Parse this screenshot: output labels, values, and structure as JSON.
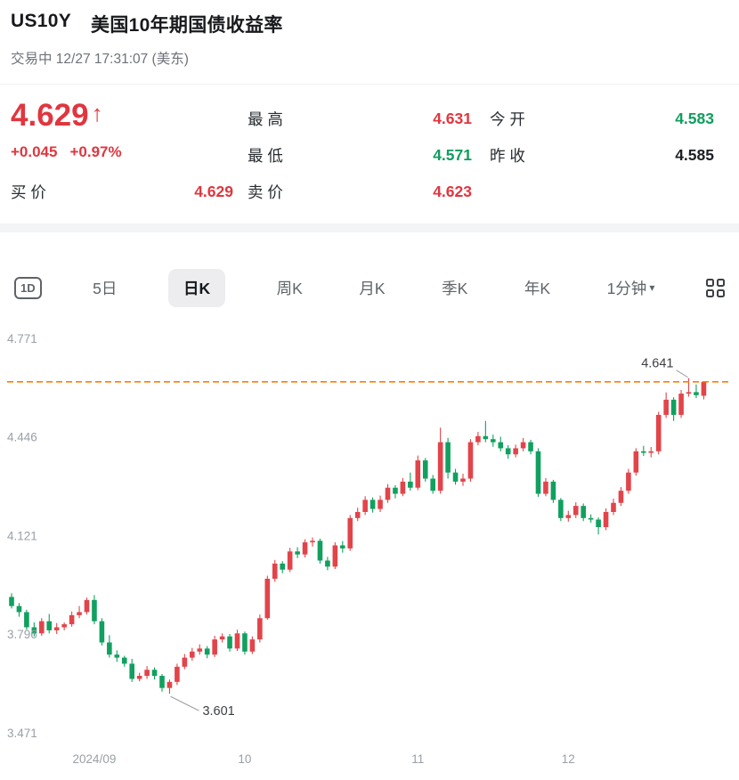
{
  "header": {
    "symbol": "US10Y",
    "name": "美国10年期国债收益率",
    "status_line": "交易中 12/27 17:31:07 (美东)"
  },
  "quote": {
    "price": "4.629",
    "arrow": "↑",
    "change": "+0.045",
    "change_pct": "+0.97%",
    "stats": [
      {
        "label": "最 高",
        "value": "4.631",
        "color": "red"
      },
      {
        "label": "今 开",
        "value": "4.583",
        "color": "green"
      },
      {
        "label": "最 低",
        "value": "4.571",
        "color": "green"
      },
      {
        "label": "昨 收",
        "value": "4.585",
        "color": "dark"
      },
      {
        "label": "买 价",
        "value": "4.629",
        "color": "red"
      },
      {
        "label": "卖 价",
        "value": "4.623",
        "color": "red"
      }
    ]
  },
  "tabs": {
    "items": [
      {
        "id": "tab-1d-intraday",
        "label": "1D",
        "type": "icon-box"
      },
      {
        "id": "tab-5-day",
        "label": "5日"
      },
      {
        "id": "tab-daily-k",
        "label": "日K",
        "active": true
      },
      {
        "id": "tab-weekly-k",
        "label": "周K"
      },
      {
        "id": "tab-monthly-k",
        "label": "月K"
      },
      {
        "id": "tab-quarterly-k",
        "label": "季K"
      },
      {
        "id": "tab-yearly-k",
        "label": "年K"
      },
      {
        "id": "tab-1-minute-selector",
        "label": "1分钟",
        "caret": "▾"
      }
    ]
  },
  "colors": {
    "red": "#e0363f",
    "green": "#0f9e5d",
    "dark": "#1c2024",
    "orange": "#ff7d00",
    "axis": "#9aa0a6",
    "annotation": "#3c4043"
  },
  "chart_data": {
    "type": "candlestick",
    "symbol": "US10Y",
    "up_color": "#e2444a",
    "down_color": "#11a05f",
    "y_ticks": [
      4.771,
      4.446,
      4.121,
      3.796,
      3.471
    ],
    "y_domain": [
      3.44,
      4.825
    ],
    "x_ticks": [
      {
        "label": "2024/09",
        "index": 11
      },
      {
        "label": "10",
        "index": 31
      },
      {
        "label": "11",
        "index": 54
      },
      {
        "label": "12",
        "index": 74
      }
    ],
    "current_price_line": 4.629,
    "annotations": [
      {
        "text": "3.601",
        "index": 21,
        "value": 3.601,
        "side": "below-right"
      },
      {
        "text": "4.641",
        "index": 90,
        "value": 4.641,
        "side": "left"
      }
    ],
    "candles": [
      [
        3.92,
        3.932,
        3.882,
        3.89
      ],
      [
        3.89,
        3.9,
        3.855,
        3.87
      ],
      [
        3.87,
        3.878,
        3.812,
        3.82
      ],
      [
        3.82,
        3.836,
        3.79,
        3.8
      ],
      [
        3.8,
        3.85,
        3.792,
        3.84
      ],
      [
        3.84,
        3.864,
        3.8,
        3.81
      ],
      [
        3.81,
        3.834,
        3.798,
        3.82
      ],
      [
        3.82,
        3.836,
        3.81,
        3.83
      ],
      [
        3.83,
        3.872,
        3.822,
        3.86
      ],
      [
        3.86,
        3.89,
        3.85,
        3.87
      ],
      [
        3.87,
        3.918,
        3.862,
        3.91
      ],
      [
        3.91,
        3.926,
        3.83,
        3.84
      ],
      [
        3.84,
        3.85,
        3.76,
        3.77
      ],
      [
        3.77,
        3.794,
        3.72,
        3.73
      ],
      [
        3.73,
        3.744,
        3.706,
        3.72
      ],
      [
        3.72,
        3.726,
        3.69,
        3.7
      ],
      [
        3.7,
        3.716,
        3.64,
        3.65
      ],
      [
        3.65,
        3.67,
        3.642,
        3.66
      ],
      [
        3.66,
        3.692,
        3.65,
        3.68
      ],
      [
        3.68,
        3.688,
        3.648,
        3.66
      ],
      [
        3.66,
        3.666,
        3.608,
        3.62
      ],
      [
        3.62,
        3.648,
        3.601,
        3.64
      ],
      [
        3.64,
        3.7,
        3.63,
        3.69
      ],
      [
        3.69,
        3.732,
        3.682,
        3.72
      ],
      [
        3.72,
        3.752,
        3.71,
        3.74
      ],
      [
        3.74,
        3.764,
        3.73,
        3.75
      ],
      [
        3.75,
        3.758,
        3.718,
        3.73
      ],
      [
        3.73,
        3.792,
        3.722,
        3.78
      ],
      [
        3.78,
        3.8,
        3.77,
        3.79
      ],
      [
        3.79,
        3.798,
        3.74,
        3.75
      ],
      [
        3.75,
        3.812,
        3.742,
        3.8
      ],
      [
        3.8,
        3.806,
        3.73,
        3.74
      ],
      [
        3.74,
        3.79,
        3.732,
        3.78
      ],
      [
        3.78,
        3.862,
        3.77,
        3.85
      ],
      [
        3.85,
        3.99,
        3.845,
        3.98
      ],
      [
        3.98,
        4.042,
        3.97,
        4.03
      ],
      [
        4.03,
        4.038,
        3.998,
        4.01
      ],
      [
        4.01,
        4.082,
        4.002,
        4.07
      ],
      [
        4.07,
        4.084,
        4.048,
        4.06
      ],
      [
        4.06,
        4.11,
        4.05,
        4.1
      ],
      [
        4.1,
        4.116,
        4.086,
        4.105
      ],
      [
        4.105,
        4.112,
        4.03,
        4.04
      ],
      [
        4.04,
        4.052,
        4.008,
        4.02
      ],
      [
        4.02,
        4.1,
        4.012,
        4.09
      ],
      [
        4.09,
        4.104,
        4.066,
        4.08
      ],
      [
        4.08,
        4.19,
        4.072,
        4.18
      ],
      [
        4.18,
        4.214,
        4.17,
        4.2
      ],
      [
        4.2,
        4.252,
        4.19,
        4.24
      ],
      [
        4.24,
        4.248,
        4.198,
        4.21
      ],
      [
        4.21,
        4.254,
        4.2,
        4.24
      ],
      [
        4.24,
        4.292,
        4.23,
        4.28
      ],
      [
        4.28,
        4.288,
        4.245,
        4.26
      ],
      [
        4.26,
        4.312,
        4.252,
        4.3
      ],
      [
        4.3,
        4.33,
        4.27,
        4.28
      ],
      [
        4.28,
        4.386,
        4.272,
        4.37
      ],
      [
        4.37,
        4.378,
        4.3,
        4.31
      ],
      [
        4.31,
        4.322,
        4.26,
        4.27
      ],
      [
        4.27,
        4.478,
        4.26,
        4.43
      ],
      [
        4.43,
        4.444,
        4.31,
        4.33
      ],
      [
        4.33,
        4.342,
        4.29,
        4.3
      ],
      [
        4.3,
        4.326,
        4.286,
        4.31
      ],
      [
        4.31,
        4.44,
        4.3,
        4.43
      ],
      [
        4.43,
        4.464,
        4.42,
        4.45
      ],
      [
        4.45,
        4.5,
        4.43,
        4.44
      ],
      [
        4.44,
        4.455,
        4.415,
        4.43
      ],
      [
        4.43,
        4.448,
        4.4,
        4.41
      ],
      [
        4.41,
        4.42,
        4.375,
        4.39
      ],
      [
        4.39,
        4.422,
        4.38,
        4.41
      ],
      [
        4.41,
        4.444,
        4.4,
        4.43
      ],
      [
        4.43,
        4.438,
        4.39,
        4.4
      ],
      [
        4.4,
        4.41,
        4.25,
        4.26
      ],
      [
        4.26,
        4.312,
        4.252,
        4.3
      ],
      [
        4.3,
        4.306,
        4.23,
        4.24
      ],
      [
        4.24,
        4.246,
        4.17,
        4.18
      ],
      [
        4.18,
        4.204,
        4.168,
        4.19
      ],
      [
        4.19,
        4.232,
        4.18,
        4.22
      ],
      [
        4.22,
        4.228,
        4.17,
        4.18
      ],
      [
        4.18,
        4.192,
        4.165,
        4.175
      ],
      [
        4.175,
        4.182,
        4.126,
        4.15
      ],
      [
        4.15,
        4.212,
        4.14,
        4.2
      ],
      [
        4.2,
        4.244,
        4.19,
        4.23
      ],
      [
        4.23,
        4.282,
        4.22,
        4.27
      ],
      [
        4.27,
        4.342,
        4.26,
        4.33
      ],
      [
        4.33,
        4.41,
        4.32,
        4.4
      ],
      [
        4.4,
        4.418,
        4.385,
        4.395
      ],
      [
        4.395,
        4.414,
        4.38,
        4.4
      ],
      [
        4.4,
        4.53,
        4.39,
        4.52
      ],
      [
        4.52,
        4.594,
        4.51,
        4.57
      ],
      [
        4.57,
        4.578,
        4.5,
        4.52
      ],
      [
        4.52,
        4.602,
        4.51,
        4.59
      ],
      [
        4.59,
        4.641,
        4.58,
        4.595
      ],
      [
        4.595,
        4.62,
        4.575,
        4.585
      ],
      [
        4.583,
        4.631,
        4.571,
        4.629
      ]
    ]
  }
}
